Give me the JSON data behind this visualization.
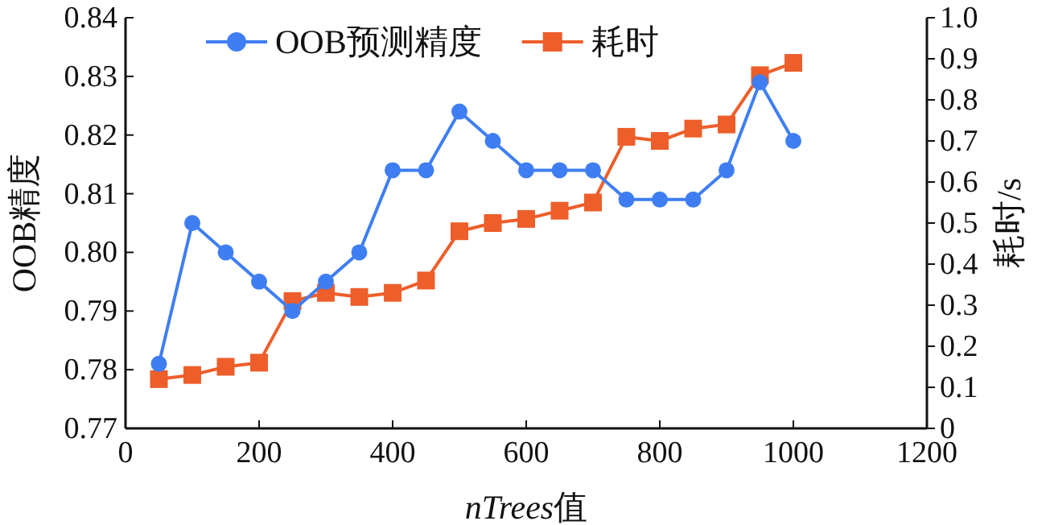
{
  "chart_data": {
    "type": "line",
    "xlabel": "nTrees值",
    "ylabel": "OOB精度",
    "y2label": "耗时/s",
    "x": [
      50,
      100,
      150,
      200,
      250,
      300,
      350,
      400,
      450,
      500,
      550,
      600,
      650,
      700,
      750,
      800,
      850,
      900,
      950,
      1000
    ],
    "series": [
      {
        "name": "OOB预测精度",
        "color": "#3f7ef2",
        "marker": "circle",
        "values": [
          0.781,
          0.805,
          0.8,
          0.795,
          0.79,
          0.795,
          0.8,
          0.814,
          0.814,
          0.824,
          0.819,
          0.814,
          0.814,
          0.814,
          0.809,
          0.809,
          0.809,
          0.814,
          0.829,
          0.819
        ]
      },
      {
        "name": "耗时",
        "color": "#ed5e2a",
        "marker": "square",
        "axis": "y2",
        "values": [
          0.12,
          0.13,
          0.15,
          0.16,
          0.31,
          0.33,
          0.32,
          0.33,
          0.36,
          0.48,
          0.5,
          0.51,
          0.53,
          0.55,
          0.71,
          0.7,
          0.73,
          0.74,
          0.86,
          0.89
        ]
      }
    ],
    "xlim": [
      0,
      1200
    ],
    "xticks": [
      0,
      200,
      400,
      600,
      800,
      1000,
      1200
    ],
    "ylim": [
      0.77,
      0.84
    ],
    "yticks": [
      0.77,
      0.78,
      0.79,
      {
        "value": 0.8,
        "label": "0.80"
      },
      0.81,
      0.82,
      0.83,
      0.84
    ],
    "y2lim": [
      0,
      1.0
    ],
    "y2ticks": [
      {
        "value": 0,
        "label": "0"
      },
      {
        "value": 0.1,
        "label": "0.1"
      },
      {
        "value": 0.2,
        "label": "0.2"
      },
      {
        "value": 0.3,
        "label": "0.3"
      },
      {
        "value": 0.4,
        "label": "0.4"
      },
      {
        "value": 0.5,
        "label": "0.5"
      },
      {
        "value": 0.6,
        "label": "0.6"
      },
      {
        "value": 0.7,
        "label": "0.7"
      },
      {
        "value": 0.8,
        "label": "0.8"
      },
      {
        "value": 0.9,
        "label": "0.9"
      },
      {
        "value": 1.0,
        "label": "1.0"
      }
    ],
    "grid": false,
    "legend": "top",
    "line_style": "solid"
  }
}
